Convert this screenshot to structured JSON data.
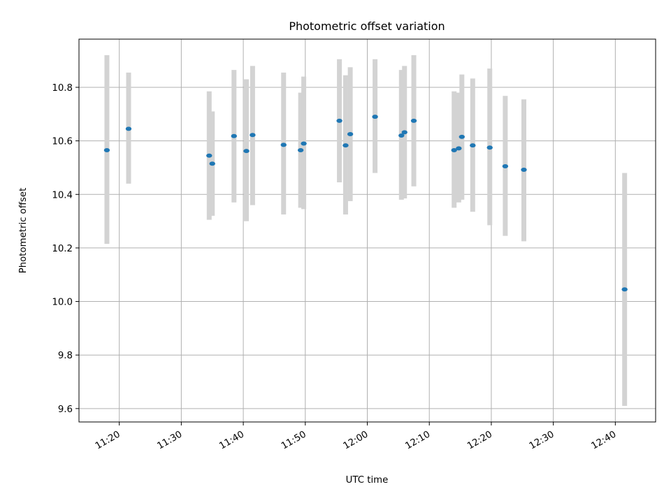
{
  "chart_data": {
    "type": "scatter",
    "title": "Photometric offset variation",
    "xlabel": "UTC time",
    "ylabel": "Photometric offset",
    "grid": true,
    "x_ticks": [
      "11:20",
      "11:30",
      "11:40",
      "11:50",
      "12:00",
      "12:10",
      "12:20",
      "12:30",
      "12:40"
    ],
    "y_ticks": [
      "9.6",
      "9.8",
      "10.0",
      "10.2",
      "10.4",
      "10.6",
      "10.8"
    ],
    "xlim": [
      "11:13:30",
      "12:46:30"
    ],
    "ylim": [
      9.55,
      10.98
    ],
    "colors": {
      "point": "#1f77b4",
      "error_bar": "#d3d3d3",
      "grid": "#b0b0b0"
    },
    "points": [
      {
        "x": "11:18:00",
        "y": 10.565,
        "yerr_low": 10.215,
        "yerr_high": 10.92
      },
      {
        "x": "11:21:30",
        "y": 10.645,
        "yerr_low": 10.44,
        "yerr_high": 10.855
      },
      {
        "x": "11:34:30",
        "y": 10.545,
        "yerr_low": 10.305,
        "yerr_high": 10.785
      },
      {
        "x": "11:35:00",
        "y": 10.515,
        "yerr_low": 10.32,
        "yerr_high": 10.71
      },
      {
        "x": "11:38:30",
        "y": 10.618,
        "yerr_low": 10.37,
        "yerr_high": 10.865
      },
      {
        "x": "11:40:30",
        "y": 10.562,
        "yerr_low": 10.3,
        "yerr_high": 10.83
      },
      {
        "x": "11:41:30",
        "y": 10.622,
        "yerr_low": 10.36,
        "yerr_high": 10.88
      },
      {
        "x": "11:46:30",
        "y": 10.585,
        "yerr_low": 10.325,
        "yerr_high": 10.855
      },
      {
        "x": "11:49:15",
        "y": 10.565,
        "yerr_low": 10.35,
        "yerr_high": 10.78
      },
      {
        "x": "11:49:45",
        "y": 10.59,
        "yerr_low": 10.345,
        "yerr_high": 10.84
      },
      {
        "x": "11:55:30",
        "y": 10.675,
        "yerr_low": 10.445,
        "yerr_high": 10.905
      },
      {
        "x": "11:56:30",
        "y": 10.583,
        "yerr_low": 10.325,
        "yerr_high": 10.845
      },
      {
        "x": "11:57:15",
        "y": 10.625,
        "yerr_low": 10.375,
        "yerr_high": 10.875
      },
      {
        "x": "12:01:15",
        "y": 10.69,
        "yerr_low": 10.48,
        "yerr_high": 10.905
      },
      {
        "x": "12:05:30",
        "y": 10.62,
        "yerr_low": 10.38,
        "yerr_high": 10.865
      },
      {
        "x": "12:06:00",
        "y": 10.632,
        "yerr_low": 10.385,
        "yerr_high": 10.88
      },
      {
        "x": "12:07:30",
        "y": 10.675,
        "yerr_low": 10.43,
        "yerr_high": 10.92
      },
      {
        "x": "12:14:00",
        "y": 10.565,
        "yerr_low": 10.35,
        "yerr_high": 10.785
      },
      {
        "x": "12:14:45",
        "y": 10.572,
        "yerr_low": 10.37,
        "yerr_high": 10.78
      },
      {
        "x": "12:15:15",
        "y": 10.615,
        "yerr_low": 10.38,
        "yerr_high": 10.848
      },
      {
        "x": "12:17:00",
        "y": 10.583,
        "yerr_low": 10.335,
        "yerr_high": 10.833
      },
      {
        "x": "12:19:45",
        "y": 10.575,
        "yerr_low": 10.285,
        "yerr_high": 10.87
      },
      {
        "x": "12:22:15",
        "y": 10.505,
        "yerr_low": 10.245,
        "yerr_high": 10.768
      },
      {
        "x": "12:25:15",
        "y": 10.492,
        "yerr_low": 10.225,
        "yerr_high": 10.755
      },
      {
        "x": "12:41:30",
        "y": 10.045,
        "yerr_low": 9.61,
        "yerr_high": 10.48
      }
    ]
  }
}
